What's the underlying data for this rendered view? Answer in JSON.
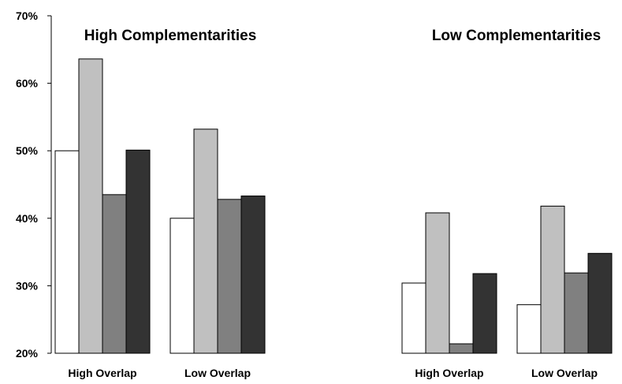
{
  "chart_data": {
    "type": "bar",
    "panels": [
      {
        "title": "High Complementarities",
        "categories": [
          "High Overlap",
          "Low Overlap"
        ],
        "series": [
          {
            "values": [
              50.0,
              40.0
            ]
          },
          {
            "values": [
              63.6,
              53.2
            ]
          },
          {
            "values": [
              43.5,
              42.8
            ]
          },
          {
            "values": [
              50.1,
              43.3
            ]
          }
        ]
      },
      {
        "title": "Low Complementarities",
        "categories": [
          "High Overlap",
          "Low Overlap"
        ],
        "series": [
          {
            "values": [
              30.4,
              27.2
            ]
          },
          {
            "values": [
              40.8,
              41.8
            ]
          },
          {
            "values": [
              21.4,
              31.9
            ]
          },
          {
            "values": [
              31.8,
              34.8
            ]
          }
        ]
      }
    ],
    "series_colors": [
      "#ffffff",
      "#c0c0c0",
      "#808080",
      "#333333"
    ],
    "ylim": [
      20,
      70
    ],
    "yticks": [
      "20%",
      "30%",
      "40%",
      "50%",
      "60%",
      "70%"
    ],
    "ytick_values": [
      20,
      30,
      40,
      50,
      60,
      70
    ],
    "grid": false,
    "legend": "none",
    "xlabel": "",
    "ylabel": ""
  }
}
